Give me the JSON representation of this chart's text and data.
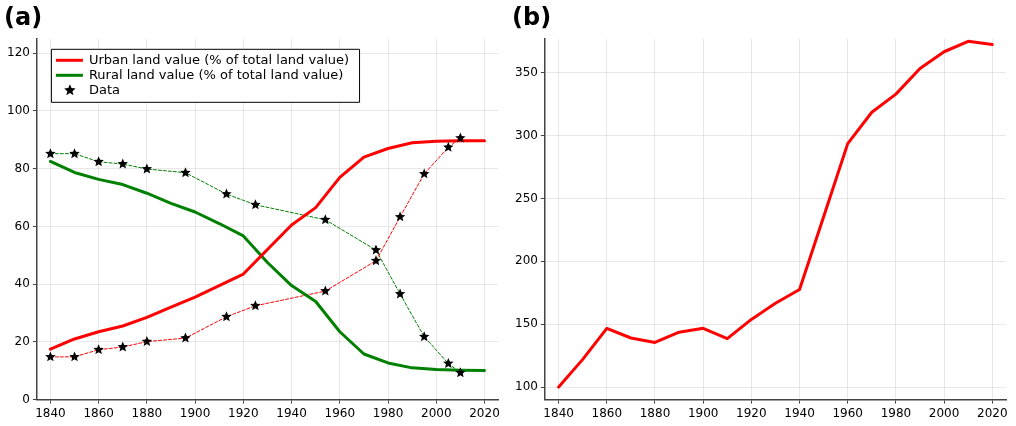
{
  "chart_data": [
    {
      "type": "line",
      "title": "(a)",
      "xlim": [
        1834.4,
        2025.6
      ],
      "ylim": [
        0,
        125
      ],
      "xticks": [
        1840,
        1860,
        1880,
        1900,
        1920,
        1940,
        1960,
        1980,
        2000,
        2020
      ],
      "yticks": [
        0,
        20,
        40,
        60,
        80,
        100,
        120
      ],
      "grid": true,
      "legend": "top left",
      "series": [
        {
          "name": "Urban land value (% of total land value)",
          "color": "#ff0000",
          "x": [
            1840,
            1850,
            1860,
            1870,
            1880,
            1890,
            1900,
            1910,
            1920,
            1930,
            1940,
            1950,
            1960,
            1970,
            1980,
            1990,
            2000,
            2010,
            2020
          ],
          "values": [
            17.5,
            21,
            23.5,
            25.5,
            28.5,
            32,
            35.5,
            39.5,
            43.5,
            52,
            60.5,
            66.5,
            77,
            84,
            87,
            89,
            89.5,
            89.7,
            89.7
          ],
          "marker": "none",
          "line_style": "solid"
        },
        {
          "name": "Rural land value (% of total land value)",
          "color": "#008000",
          "x": [
            1840,
            1850,
            1860,
            1870,
            1880,
            1890,
            1900,
            1910,
            1920,
            1930,
            1940,
            1950,
            1960,
            1970,
            1980,
            1990,
            2000,
            2010,
            2020
          ],
          "values": [
            82.5,
            78.7,
            76.3,
            74.5,
            71.5,
            68,
            65,
            61,
            56.7,
            47.5,
            39.5,
            34,
            23.5,
            15.8,
            12.7,
            11,
            10.4,
            10.2,
            10.1
          ],
          "marker": "none",
          "line_style": "solid"
        },
        {
          "type": "line",
          "color": "#ff0000",
          "x": [
            1840,
            1850,
            1860,
            1870,
            1880,
            1896,
            1913,
            1925,
            1954,
            1975,
            1985,
            1995,
            2005,
            2010
          ],
          "values": [
            14.8,
            14.8,
            17.3,
            18.2,
            20.1,
            21.3,
            28.7,
            32.5,
            37.6,
            48.1,
            63.3,
            78.2,
            87.4,
            90.6
          ],
          "marker": "none",
          "line_style": "dashed"
        },
        {
          "type": "line",
          "color": "#008000",
          "x": [
            1840,
            1850,
            1860,
            1870,
            1880,
            1896,
            1913,
            1925,
            1954,
            1975,
            1985,
            1995,
            2005,
            2010
          ],
          "values": [
            85.2,
            85.2,
            82.4,
            81.6,
            79.9,
            78.6,
            71.2,
            67.5,
            62.3,
            51.8,
            36.6,
            21.8,
            12.5,
            9.3
          ],
          "marker": "none",
          "line_style": "dashed"
        },
        {
          "type": "scatter",
          "name": "Data",
          "color": "#000000",
          "x": [
            1840,
            1850,
            1860,
            1870,
            1880,
            1896,
            1913,
            1925,
            1954,
            1975,
            1985,
            1995,
            2005,
            2010
          ],
          "values": [
            14.8,
            14.8,
            17.3,
            18.2,
            20.1,
            21.3,
            28.7,
            32.5,
            37.6,
            48.1,
            63.3,
            78.2,
            87.4,
            90.6
          ],
          "marker": "star"
        },
        {
          "type": "scatter",
          "color": "#000000",
          "x": [
            1840,
            1850,
            1860,
            1870,
            1880,
            1896,
            1913,
            1925,
            1954,
            1975,
            1985,
            1995,
            2005,
            2010
          ],
          "values": [
            85.2,
            85.2,
            82.4,
            81.6,
            79.9,
            78.6,
            71.2,
            67.5,
            62.3,
            51.8,
            36.6,
            21.8,
            12.5,
            9.3
          ],
          "marker": "star"
        }
      ]
    },
    {
      "type": "line",
      "title": "(b)",
      "xlim": [
        1834.3,
        2025.7
      ],
      "ylim": [
        90,
        377
      ],
      "xticks": [
        1840,
        1860,
        1880,
        1900,
        1920,
        1940,
        1960,
        1980,
        2000,
        2020
      ],
      "yticks": [
        100,
        150,
        200,
        250,
        300,
        350
      ],
      "grid": true,
      "series": [
        {
          "color": "#ff0000",
          "x": [
            1840,
            1850,
            1860,
            1870,
            1880,
            1890,
            1900,
            1910,
            1920,
            1930,
            1940,
            1950,
            1960,
            1970,
            1980,
            1990,
            2000,
            2010,
            2020
          ],
          "values": [
            100,
            122,
            146.7,
            139,
            135.5,
            143.6,
            146.7,
            138.5,
            153.8,
            166.6,
            177.6,
            235.5,
            293.6,
            318.6,
            333,
            353.4,
            366.7,
            375,
            372.4
          ],
          "marker": "none",
          "line_style": "solid"
        }
      ]
    }
  ]
}
